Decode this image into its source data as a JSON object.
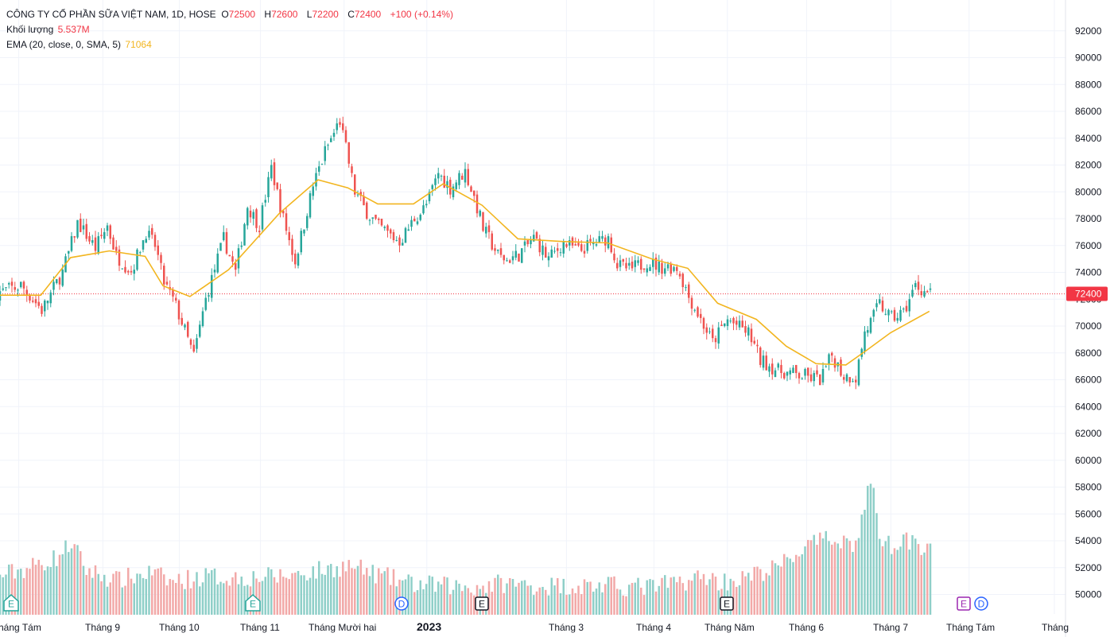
{
  "legend": {
    "title": "CÔNG TY CỔ PHẦN SỮA VIỆT NAM, 1D, HOSE",
    "o_label": "O",
    "o_value": "72500",
    "h_label": "H",
    "h_value": "72600",
    "l_label": "L",
    "l_value": "72200",
    "c_label": "C",
    "c_value": "72400",
    "change": "+100 (+0.14%)",
    "volume_label": "Khối lượng",
    "volume_value": "5.537M",
    "ema_label": "EMA (20, close, 0, SMA, 5)",
    "ema_value": "71064"
  },
  "colors": {
    "up": "#26a69a",
    "down": "#ef5350",
    "up_volume": "#8fcfc8",
    "down_volume": "#f2a9a8",
    "ema": "#f2b51f",
    "price_label_bg": "#f23645",
    "grid": "#f0f3fa",
    "axis_text": "#131722",
    "event_dividend": "#2962ff",
    "event_earnings_future": "#9c27b0"
  },
  "chart_data": {
    "type": "candlestick",
    "price_ticks": [
      "50000",
      "52000",
      "54000",
      "56000",
      "58000",
      "60000",
      "62000",
      "64000",
      "66000",
      "68000",
      "70000",
      "72000",
      "74000",
      "76000",
      "78000",
      "80000",
      "82000",
      "84000",
      "86000",
      "88000",
      "90000",
      "92000"
    ],
    "price_ylim": [
      49000,
      93000
    ],
    "last_price": "72400",
    "time_labels": [
      "háng Tám",
      "Tháng 9",
      "Tháng 10",
      "Tháng 11",
      "Tháng Mười hai",
      "2023",
      "Tháng 3",
      "Tháng 4",
      "Tháng Năm",
      "Tháng 6",
      "Tháng 7",
      "Tháng Tám",
      "Tháng"
    ],
    "time_label_bold": [
      false,
      false,
      false,
      false,
      false,
      true,
      false,
      false,
      false,
      false,
      false,
      false,
      false
    ],
    "events": [
      {
        "label": "E",
        "type": "earnings"
      },
      {
        "label": "E",
        "type": "earnings"
      },
      {
        "label": "D",
        "type": "dividend"
      },
      {
        "label": "E",
        "type": "earnings"
      },
      {
        "label": "E",
        "type": "earnings"
      },
      {
        "label": "E",
        "type": "earnings-future"
      },
      {
        "label": "D",
        "type": "dividend"
      }
    ],
    "ema_keypoints": [
      [
        0,
        72300
      ],
      [
        15,
        72300
      ],
      [
        25,
        75100
      ],
      [
        38,
        75600
      ],
      [
        50,
        75200
      ],
      [
        56,
        73000
      ],
      [
        65,
        72200
      ],
      [
        78,
        74200
      ],
      [
        95,
        78400
      ],
      [
        108,
        80900
      ],
      [
        118,
        80300
      ],
      [
        128,
        79100
      ],
      [
        140,
        79100
      ],
      [
        150,
        80600
      ],
      [
        163,
        79000
      ],
      [
        175,
        76500
      ],
      [
        190,
        76300
      ],
      [
        205,
        76200
      ],
      [
        220,
        75000
      ],
      [
        232,
        74300
      ],
      [
        242,
        71700
      ],
      [
        255,
        70500
      ],
      [
        265,
        68500
      ],
      [
        275,
        67200
      ],
      [
        285,
        67100
      ],
      [
        292,
        68200
      ],
      [
        300,
        69500
      ],
      [
        313,
        71100
      ]
    ],
    "price_keypoints": [
      [
        0,
        72500
      ],
      [
        8,
        73000
      ],
      [
        15,
        71200
      ],
      [
        22,
        74000
      ],
      [
        27,
        77700
      ],
      [
        33,
        75800
      ],
      [
        37,
        77500
      ],
      [
        40,
        75200
      ],
      [
        45,
        74100
      ],
      [
        50,
        77000
      ],
      [
        53,
        76000
      ],
      [
        56,
        73300
      ],
      [
        60,
        71500
      ],
      [
        66,
        67800
      ],
      [
        70,
        72000
      ],
      [
        76,
        76500
      ],
      [
        80,
        74000
      ],
      [
        84,
        79000
      ],
      [
        88,
        77500
      ],
      [
        92,
        81800
      ],
      [
        96,
        78000
      ],
      [
        100,
        74800
      ],
      [
        106,
        80500
      ],
      [
        110,
        83000
      ],
      [
        115,
        85300
      ],
      [
        120,
        80000
      ],
      [
        124,
        78500
      ],
      [
        128,
        77400
      ],
      [
        135,
        76300
      ],
      [
        140,
        78000
      ],
      [
        144,
        79000
      ],
      [
        148,
        81400
      ],
      [
        152,
        80300
      ],
      [
        157,
        81500
      ],
      [
        160,
        79600
      ],
      [
        163,
        77300
      ],
      [
        168,
        75300
      ],
      [
        171,
        74900
      ],
      [
        175,
        75300
      ],
      [
        180,
        76600
      ],
      [
        185,
        75000
      ],
      [
        190,
        76200
      ],
      [
        195,
        75600
      ],
      [
        200,
        76100
      ],
      [
        205,
        76600
      ],
      [
        208,
        74600
      ],
      [
        212,
        74200
      ],
      [
        218,
        74800
      ],
      [
        222,
        74400
      ],
      [
        228,
        74400
      ],
      [
        232,
        72200
      ],
      [
        236,
        70500
      ],
      [
        240,
        68800
      ],
      [
        245,
        70500
      ],
      [
        252,
        69500
      ],
      [
        256,
        67500
      ],
      [
        262,
        66700
      ],
      [
        266,
        66500
      ],
      [
        272,
        66200
      ],
      [
        276,
        66000
      ],
      [
        280,
        67800
      ],
      [
        284,
        66300
      ],
      [
        288,
        66200
      ],
      [
        291,
        69500
      ],
      [
        296,
        71600
      ],
      [
        300,
        70600
      ],
      [
        304,
        71000
      ],
      [
        308,
        73000
      ],
      [
        313,
        72400
      ]
    ],
    "volume_keypoints": [
      [
        0,
        51200
      ],
      [
        10,
        51800
      ],
      [
        20,
        52600
      ],
      [
        25,
        53700
      ],
      [
        30,
        51700
      ],
      [
        40,
        50900
      ],
      [
        52,
        51500
      ],
      [
        58,
        50800
      ],
      [
        70,
        51200
      ],
      [
        80,
        51100
      ],
      [
        95,
        51200
      ],
      [
        110,
        51700
      ],
      [
        118,
        52000
      ],
      [
        128,
        51300
      ],
      [
        140,
        50600
      ],
      [
        160,
        50400
      ],
      [
        170,
        50700
      ],
      [
        180,
        50500
      ],
      [
        200,
        50500
      ],
      [
        220,
        50400
      ],
      [
        238,
        51200
      ],
      [
        242,
        50800
      ],
      [
        250,
        51000
      ],
      [
        262,
        51900
      ],
      [
        272,
        53500
      ],
      [
        282,
        54100
      ],
      [
        288,
        53500
      ],
      [
        293,
        58500
      ],
      [
        296,
        54300
      ],
      [
        300,
        53400
      ],
      [
        304,
        54400
      ],
      [
        308,
        53300
      ],
      [
        313,
        53900
      ]
    ],
    "n_bars": 314
  }
}
